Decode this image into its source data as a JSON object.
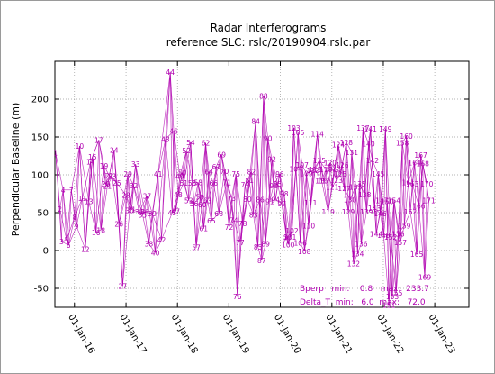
{
  "chart_data": {
    "type": "line",
    "title": "Radar Interferograms",
    "subtitle": "reference SLC: rslc/20190904.rslc.par",
    "xlabel": "",
    "ylabel": "Perpendicular Baseline (m)",
    "xlim": [
      "2015-08-15",
      "2023-08-31"
    ],
    "ylim": [
      -75,
      250
    ],
    "x_ticks": [
      "01-Jan-16",
      "01-Jan-17",
      "01-Jan-18",
      "01-Jan-19",
      "01-Jan-20",
      "01-Jan-21",
      "01-Jan-22",
      "01-Jan-23"
    ],
    "y_ticks": [
      -50,
      0,
      50,
      100,
      150,
      200
    ],
    "grid": true,
    "series_color": "#b000b0",
    "acquisitions": [
      {
        "id": "1",
        "date": "2015-08-20",
        "bperp": 129
      },
      {
        "id": "2",
        "date": "2015-09-20",
        "bperp": 55
      },
      {
        "id": "3",
        "date": "2015-10-01",
        "bperp": 12
      },
      {
        "id": "4",
        "date": "2015-10-12",
        "bperp": 80
      },
      {
        "id": "5",
        "date": "2015-11-06",
        "bperp": 14
      },
      {
        "id": "6",
        "date": "2015-11-20",
        "bperp": 7
      },
      {
        "id": "7",
        "date": "2015-12-10",
        "bperp": 80
      },
      {
        "id": "8",
        "date": "2016-01-02",
        "bperp": 44
      },
      {
        "id": "9",
        "date": "2016-01-16",
        "bperp": 32
      },
      {
        "id": "10",
        "date": "2016-02-06",
        "bperp": 138
      },
      {
        "id": "11",
        "date": "2016-02-26",
        "bperp": 69
      },
      {
        "id": "12",
        "date": "2016-03-18",
        "bperp": 2
      },
      {
        "id": "13",
        "date": "2016-04-12",
        "bperp": 65
      },
      {
        "id": "14",
        "date": "2016-04-24",
        "bperp": 117
      },
      {
        "id": "15",
        "date": "2016-05-08",
        "bperp": 124
      },
      {
        "id": "16",
        "date": "2016-06-02",
        "bperp": 24
      },
      {
        "id": "17",
        "date": "2016-06-22",
        "bperp": 146
      },
      {
        "id": "18",
        "date": "2016-07-07",
        "bperp": 27
      },
      {
        "id": "19",
        "date": "2016-07-28",
        "bperp": 112
      },
      {
        "id": "20",
        "date": "2016-08-10",
        "bperp": 88
      },
      {
        "id": "21",
        "date": "2016-08-22",
        "bperp": 85
      },
      {
        "id": "22",
        "date": "2016-09-04",
        "bperp": 99
      },
      {
        "id": "23",
        "date": "2016-09-24",
        "bperp": 98
      },
      {
        "id": "24",
        "date": "2016-10-08",
        "bperp": 133
      },
      {
        "id": "25",
        "date": "2016-10-28",
        "bperp": 89
      },
      {
        "id": "26",
        "date": "2016-11-12",
        "bperp": 35
      },
      {
        "id": "27",
        "date": "2016-12-08",
        "bperp": -47
      },
      {
        "id": "28",
        "date": "2017-01-01",
        "bperp": 73
      },
      {
        "id": "29",
        "date": "2017-01-14",
        "bperp": 101
      },
      {
        "id": "30",
        "date": "2017-01-27",
        "bperp": 53
      },
      {
        "id": "31",
        "date": "2017-02-10",
        "bperp": 54
      },
      {
        "id": "32",
        "date": "2017-02-24",
        "bperp": 86
      },
      {
        "id": "33",
        "date": "2017-03-10",
        "bperp": 114
      },
      {
        "id": "34",
        "date": "2017-04-04",
        "bperp": 51
      },
      {
        "id": "35",
        "date": "2017-04-28",
        "bperp": 47
      },
      {
        "id": "36",
        "date": "2017-05-14",
        "bperp": 51
      },
      {
        "id": "37",
        "date": "2017-05-30",
        "bperp": 72
      },
      {
        "id": "38",
        "date": "2017-06-12",
        "bperp": 9
      },
      {
        "id": "39",
        "date": "2017-07-06",
        "bperp": 49
      },
      {
        "id": "40",
        "date": "2017-07-28",
        "bperp": -3
      },
      {
        "id": "41",
        "date": "2017-08-16",
        "bperp": 101
      },
      {
        "id": "42",
        "date": "2017-09-10",
        "bperp": 14
      },
      {
        "id": "43",
        "date": "2017-10-08",
        "bperp": 147
      },
      {
        "id": "44",
        "date": "2017-11-11",
        "bperp": 236
      },
      {
        "id": "45",
        "date": "2017-11-25",
        "bperp": 50
      },
      {
        "id": "46",
        "date": "2017-12-06",
        "bperp": 158
      },
      {
        "id": "47",
        "date": "2017-12-20",
        "bperp": 52
      },
      {
        "id": "48",
        "date": "2018-01-06",
        "bperp": 74
      },
      {
        "id": "49",
        "date": "2018-01-18",
        "bperp": 98
      },
      {
        "id": "50",
        "date": "2018-02-04",
        "bperp": 103
      },
      {
        "id": "51",
        "date": "2018-02-15",
        "bperp": 89
      },
      {
        "id": "52",
        "date": "2018-03-06",
        "bperp": 132
      },
      {
        "id": "53",
        "date": "2018-03-22",
        "bperp": 66
      },
      {
        "id": "54",
        "date": "2018-04-05",
        "bperp": 143
      },
      {
        "id": "55",
        "date": "2018-04-16",
        "bperp": 89
      },
      {
        "id": "56",
        "date": "2018-04-28",
        "bperp": 62
      },
      {
        "id": "57",
        "date": "2018-05-14",
        "bperp": 4
      },
      {
        "id": "58",
        "date": "2018-05-28",
        "bperp": 90
      },
      {
        "id": "59",
        "date": "2018-06-10",
        "bperp": 71
      },
      {
        "id": "60",
        "date": "2018-06-25",
        "bperp": 61
      },
      {
        "id": "61",
        "date": "2018-07-06",
        "bperp": 29
      },
      {
        "id": "62",
        "date": "2018-07-20",
        "bperp": 142
      },
      {
        "id": "63",
        "date": "2018-08-02",
        "bperp": 66
      },
      {
        "id": "64",
        "date": "2018-08-12",
        "bperp": 104
      },
      {
        "id": "65",
        "date": "2018-08-30",
        "bperp": 39
      },
      {
        "id": "66",
        "date": "2018-09-14",
        "bperp": 89
      },
      {
        "id": "67",
        "date": "2018-10-04",
        "bperp": 111
      },
      {
        "id": "68",
        "date": "2018-10-22",
        "bperp": 49
      },
      {
        "id": "69",
        "date": "2018-11-10",
        "bperp": 127
      },
      {
        "id": "70",
        "date": "2018-12-01",
        "bperp": 105
      },
      {
        "id": "71",
        "date": "2018-12-18",
        "bperp": 90
      },
      {
        "id": "72",
        "date": "2019-01-02",
        "bperp": 31
      },
      {
        "id": "73",
        "date": "2019-01-20",
        "bperp": 69
      },
      {
        "id": "74",
        "date": "2019-02-05",
        "bperp": 40
      },
      {
        "id": "75",
        "date": "2019-02-20",
        "bperp": 101
      },
      {
        "id": "76",
        "date": "2019-03-02",
        "bperp": -61
      },
      {
        "id": "77",
        "date": "2019-03-22",
        "bperp": 11
      },
      {
        "id": "78",
        "date": "2019-04-08",
        "bperp": 36
      },
      {
        "id": "79",
        "date": "2019-04-26",
        "bperp": 87
      },
      {
        "id": "80",
        "date": "2019-05-12",
        "bperp": 68
      },
      {
        "id": "81",
        "date": "2019-05-26",
        "bperp": 93
      },
      {
        "id": "82",
        "date": "2019-06-10",
        "bperp": 104
      },
      {
        "id": "83",
        "date": "2019-06-24",
        "bperp": 47
      },
      {
        "id": "84",
        "date": "2019-07-10",
        "bperp": 171
      },
      {
        "id": "85",
        "date": "2019-07-26",
        "bperp": 5
      },
      {
        "id": "86",
        "date": "2019-08-10",
        "bperp": 67
      },
      {
        "id": "87",
        "date": "2019-08-22",
        "bperp": -13
      },
      {
        "id": "88",
        "date": "2019-09-04",
        "bperp": 204
      },
      {
        "id": "89",
        "date": "2019-09-18",
        "bperp": 9
      },
      {
        "id": "90",
        "date": "2019-10-04",
        "bperp": 148
      },
      {
        "id": "91",
        "date": "2019-10-18",
        "bperp": 65
      },
      {
        "id": "92",
        "date": "2019-11-02",
        "bperp": 121
      },
      {
        "id": "93",
        "date": "2019-11-14",
        "bperp": 86
      },
      {
        "id": "94",
        "date": "2019-11-28",
        "bperp": 67
      },
      {
        "id": "95",
        "date": "2019-12-12",
        "bperp": 88
      },
      {
        "id": "96",
        "date": "2019-12-28",
        "bperp": 101
      },
      {
        "id": "97",
        "date": "2020-01-12",
        "bperp": 62
      },
      {
        "id": "98",
        "date": "2020-01-28",
        "bperp": 75
      },
      {
        "id": "99",
        "date": "2020-02-14",
        "bperp": 16
      },
      {
        "id": "100",
        "date": "2020-02-26",
        "bperp": 8
      },
      {
        "id": "101",
        "date": "2020-03-10",
        "bperp": 18
      },
      {
        "id": "102",
        "date": "2020-03-24",
        "bperp": 26
      },
      {
        "id": "103",
        "date": "2020-04-06",
        "bperp": 162
      },
      {
        "id": "104",
        "date": "2020-04-20",
        "bperp": 108
      },
      {
        "id": "105",
        "date": "2020-05-06",
        "bperp": 156
      },
      {
        "id": "106",
        "date": "2020-05-22",
        "bperp": 10
      },
      {
        "id": "107",
        "date": "2020-06-04",
        "bperp": 113
      },
      {
        "id": "108",
        "date": "2020-06-20",
        "bperp": -1
      },
      {
        "id": "109",
        "date": "2020-07-04",
        "bperp": 102
      },
      {
        "id": "110",
        "date": "2020-07-20",
        "bperp": 33
      },
      {
        "id": "111",
        "date": "2020-08-04",
        "bperp": 63
      },
      {
        "id": "112",
        "date": "2020-08-20",
        "bperp": 106
      },
      {
        "id": "113",
        "date": "2020-09-04",
        "bperp": 107
      },
      {
        "id": "114",
        "date": "2020-09-20",
        "bperp": 154
      },
      {
        "id": "115",
        "date": "2020-10-04",
        "bperp": 119
      },
      {
        "id": "116",
        "date": "2020-10-20",
        "bperp": 92
      },
      {
        "id": "117",
        "date": "2020-11-04",
        "bperp": 92
      },
      {
        "id": "118",
        "date": "2020-11-20",
        "bperp": 107
      },
      {
        "id": "119",
        "date": "2020-12-06",
        "bperp": 51
      },
      {
        "id": "120",
        "date": "2020-12-20",
        "bperp": 116
      },
      {
        "id": "121",
        "date": "2021-01-04",
        "bperp": 84
      },
      {
        "id": "122",
        "date": "2021-01-18",
        "bperp": 109
      },
      {
        "id": "123",
        "date": "2021-02-02",
        "bperp": 93
      },
      {
        "id": "124",
        "date": "2021-02-16",
        "bperp": 140
      },
      {
        "id": "125",
        "date": "2021-03-02",
        "bperp": 101
      },
      {
        "id": "126",
        "date": "2021-03-16",
        "bperp": 113
      },
      {
        "id": "127",
        "date": "2021-03-30",
        "bperp": 82
      },
      {
        "id": "128",
        "date": "2021-04-14",
        "bperp": 143
      },
      {
        "id": "129",
        "date": "2021-04-28",
        "bperp": 51
      },
      {
        "id": "130",
        "date": "2021-05-10",
        "bperp": 67
      },
      {
        "id": "131",
        "date": "2021-05-22",
        "bperp": 130
      },
      {
        "id": "132",
        "date": "2021-06-04",
        "bperp": -17
      },
      {
        "id": "133",
        "date": "2021-06-18",
        "bperp": 84
      },
      {
        "id": "134",
        "date": "2021-07-02",
        "bperp": -4
      },
      {
        "id": "135",
        "date": "2021-07-16",
        "bperp": 88
      },
      {
        "id": "136",
        "date": "2021-07-28",
        "bperp": 9
      },
      {
        "id": "137",
        "date": "2021-08-10",
        "bperp": 162
      },
      {
        "id": "138",
        "date": "2021-08-22",
        "bperp": 74
      },
      {
        "id": "139",
        "date": "2021-09-04",
        "bperp": 51
      },
      {
        "id": "140",
        "date": "2021-09-18",
        "bperp": 141
      },
      {
        "id": "141",
        "date": "2021-10-02",
        "bperp": 161
      },
      {
        "id": "142",
        "date": "2021-10-16",
        "bperp": 119
      },
      {
        "id": "143",
        "date": "2021-10-30",
        "bperp": 56
      },
      {
        "id": "144",
        "date": "2021-11-12",
        "bperp": 22
      },
      {
        "id": "145",
        "date": "2021-11-26",
        "bperp": 101
      },
      {
        "id": "146",
        "date": "2021-12-10",
        "bperp": 49
      },
      {
        "id": "147",
        "date": "2021-12-22",
        "bperp": 66
      },
      {
        "id": "148",
        "date": "2022-01-04",
        "bperp": 20
      },
      {
        "id": "149",
        "date": "2022-01-16",
        "bperp": 161
      },
      {
        "id": "150",
        "date": "2022-01-28",
        "bperp": 65
      },
      {
        "id": "151",
        "date": "2022-02-10",
        "bperp": -72
      },
      {
        "id": "152",
        "date": "2022-02-22",
        "bperp": 18
      },
      {
        "id": "153",
        "date": "2022-03-06",
        "bperp": -61
      },
      {
        "id": "154",
        "date": "2022-03-18",
        "bperp": 66
      },
      {
        "id": "155",
        "date": "2022-04-02",
        "bperp": -56
      },
      {
        "id": "156",
        "date": "2022-04-16",
        "bperp": 22
      },
      {
        "id": "157",
        "date": "2022-05-02",
        "bperp": 11
      },
      {
        "id": "158",
        "date": "2022-05-16",
        "bperp": 142
      },
      {
        "id": "159",
        "date": "2022-05-30",
        "bperp": 33
      },
      {
        "id": "160",
        "date": "2022-06-14",
        "bperp": 151
      },
      {
        "id": "161",
        "date": "2022-06-28",
        "bperp": 90
      },
      {
        "id": "162",
        "date": "2022-07-12",
        "bperp": 51
      },
      {
        "id": "163",
        "date": "2022-07-26",
        "bperp": 88
      },
      {
        "id": "164",
        "date": "2022-08-10",
        "bperp": 116
      },
      {
        "id": "165",
        "date": "2022-08-26",
        "bperp": -5
      },
      {
        "id": "166",
        "date": "2022-09-10",
        "bperp": 59
      },
      {
        "id": "167",
        "date": "2022-09-24",
        "bperp": 126
      },
      {
        "id": "168",
        "date": "2022-10-08",
        "bperp": 115
      },
      {
        "id": "169",
        "date": "2022-10-22",
        "bperp": -35
      },
      {
        "id": "170",
        "date": "2022-11-06",
        "bperp": 88
      },
      {
        "id": "171",
        "date": "2022-11-20",
        "bperp": 66
      }
    ],
    "annotations": {
      "bperp_line": "Bperp   min:    0.8   max:  233.7",
      "delta_t_line": "Delta_T  min:   6.0  max:   72.0"
    }
  }
}
